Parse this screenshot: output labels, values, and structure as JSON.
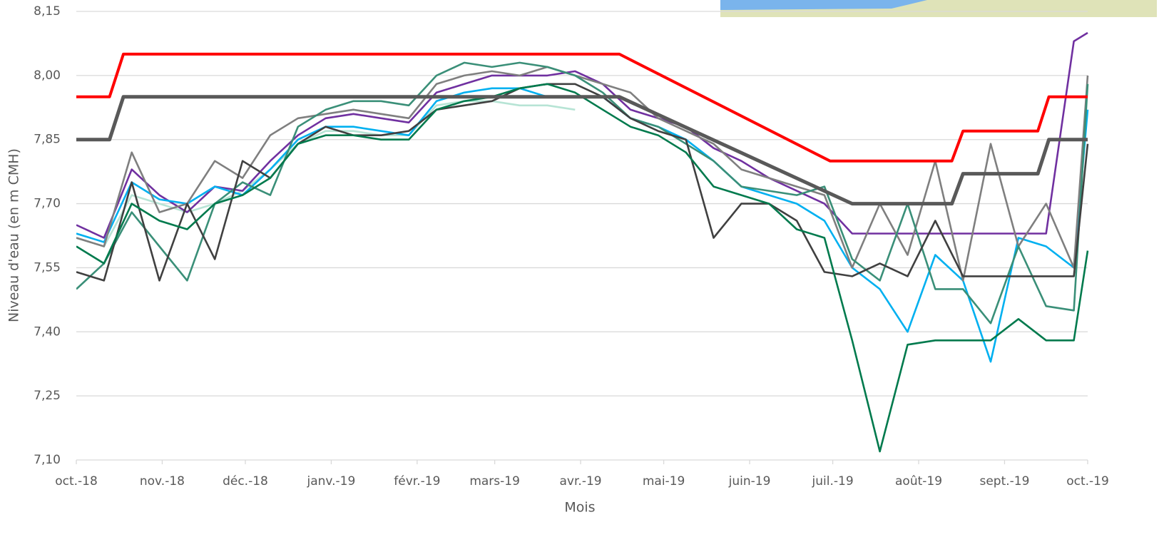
{
  "chart_data": {
    "type": "line",
    "xlabel": "Mois",
    "ylabel": "Niveau d'eau (en m CMH)",
    "xlim": [
      0,
      365
    ],
    "xticks": [
      {
        "value": 0,
        "label": "oct.-18"
      },
      {
        "value": 31,
        "label": "nov.-18"
      },
      {
        "value": 61,
        "label": "déc.-18"
      },
      {
        "value": 92,
        "label": "janv.-19"
      },
      {
        "value": 123,
        "label": "févr.-19"
      },
      {
        "value": 151,
        "label": "mars-19"
      },
      {
        "value": 182,
        "label": "avr.-19"
      },
      {
        "value": 212,
        "label": "mai-19"
      },
      {
        "value": 243,
        "label": "juin-19"
      },
      {
        "value": 273,
        "label": "juil.-19"
      },
      {
        "value": 304,
        "label": "août-19"
      },
      {
        "value": 335,
        "label": "sept.-19"
      },
      {
        "value": 365,
        "label": "oct.-19"
      }
    ],
    "ylim": [
      7.1,
      8.15
    ],
    "yticks": [
      {
        "value": 7.1,
        "label": "7,10"
      },
      {
        "value": 7.25,
        "label": "7,25"
      },
      {
        "value": 7.4,
        "label": "7,40"
      },
      {
        "value": 7.55,
        "label": "7,55"
      },
      {
        "value": 7.7,
        "label": "7,70"
      },
      {
        "value": 7.85,
        "label": "7,85"
      },
      {
        "value": 8.0,
        "label": "8,00"
      },
      {
        "value": 8.15,
        "label": "8,15"
      }
    ],
    "grid": true,
    "x": [
      0,
      10,
      20,
      30,
      40,
      50,
      60,
      70,
      80,
      90,
      100,
      110,
      120,
      130,
      140,
      150,
      160,
      170,
      180,
      190,
      200,
      210,
      220,
      230,
      240,
      250,
      260,
      270,
      280,
      290,
      300,
      310,
      320,
      330,
      340,
      350,
      360,
      365
    ],
    "series": [
      {
        "color": "#b7e4d5",
        "values": [
          7.62,
          7.6,
          7.72,
          7.7,
          7.68,
          7.7,
          7.73,
          7.78,
          7.84,
          7.87,
          7.87,
          7.86,
          7.86,
          7.93,
          7.94,
          7.94,
          7.93,
          7.93,
          7.92,
          null,
          null,
          null,
          null,
          null,
          null,
          null,
          null,
          null,
          null,
          null,
          null,
          null,
          null,
          null,
          null,
          null,
          null,
          null
        ]
      },
      {
        "color": "#7030a0",
        "values": [
          7.65,
          7.62,
          7.78,
          7.72,
          7.68,
          7.74,
          7.73,
          7.8,
          7.86,
          7.9,
          7.91,
          7.9,
          7.89,
          7.96,
          7.98,
          8.0,
          8.0,
          8.0,
          8.01,
          7.98,
          7.92,
          7.9,
          7.88,
          7.83,
          7.8,
          7.76,
          7.73,
          7.7,
          7.63,
          7.63,
          7.63,
          7.63,
          7.63,
          7.63,
          7.63,
          7.63,
          8.08,
          8.1
        ]
      },
      {
        "color": "#00b0f0",
        "values": [
          7.63,
          7.61,
          7.75,
          7.71,
          7.7,
          7.74,
          7.72,
          7.78,
          7.85,
          7.88,
          7.88,
          7.87,
          7.86,
          7.94,
          7.96,
          7.97,
          7.97,
          7.95,
          7.95,
          7.95,
          7.9,
          7.88,
          7.85,
          7.8,
          7.74,
          7.72,
          7.7,
          7.66,
          7.55,
          7.5,
          7.4,
          7.58,
          7.52,
          7.33,
          7.62,
          7.6,
          7.55,
          7.92
        ]
      },
      {
        "color": "#7f7f7f",
        "values": [
          7.62,
          7.6,
          7.82,
          7.68,
          7.7,
          7.8,
          7.76,
          7.86,
          7.9,
          7.91,
          7.92,
          7.91,
          7.9,
          7.98,
          8.0,
          8.01,
          8.0,
          8.02,
          8.0,
          7.98,
          7.96,
          7.9,
          7.87,
          7.84,
          7.78,
          7.76,
          7.74,
          7.72,
          7.55,
          7.7,
          7.58,
          7.8,
          7.52,
          7.84,
          7.6,
          7.7,
          7.55,
          8.0
        ]
      },
      {
        "color": "#3a8f78",
        "values": [
          7.5,
          7.56,
          7.68,
          7.6,
          7.52,
          7.7,
          7.75,
          7.72,
          7.88,
          7.92,
          7.94,
          7.94,
          7.93,
          8.0,
          8.03,
          8.02,
          8.03,
          8.02,
          8.0,
          7.96,
          7.9,
          7.88,
          7.84,
          7.8,
          7.74,
          7.73,
          7.72,
          7.74,
          7.57,
          7.52,
          7.7,
          7.5,
          7.5,
          7.42,
          7.6,
          7.46,
          7.45,
          7.98
        ]
      },
      {
        "color": "#404040",
        "values": [
          7.54,
          7.52,
          7.75,
          7.52,
          7.7,
          7.57,
          7.8,
          7.76,
          7.84,
          7.88,
          7.86,
          7.86,
          7.87,
          7.92,
          7.93,
          7.94,
          7.97,
          7.98,
          7.98,
          7.95,
          7.9,
          7.87,
          7.85,
          7.62,
          7.7,
          7.7,
          7.66,
          7.54,
          7.53,
          7.56,
          7.53,
          7.66,
          7.53,
          7.53,
          7.53,
          7.53,
          7.53,
          7.84
        ]
      },
      {
        "color": "#007a4d",
        "values": [
          7.6,
          7.56,
          7.7,
          7.66,
          7.64,
          7.7,
          7.72,
          7.76,
          7.84,
          7.86,
          7.86,
          7.85,
          7.85,
          7.92,
          7.94,
          7.95,
          7.97,
          7.98,
          7.96,
          7.92,
          7.88,
          7.86,
          7.82,
          7.74,
          7.72,
          7.7,
          7.64,
          7.62,
          7.38,
          7.12,
          7.37,
          7.38,
          7.38,
          7.38,
          7.43,
          7.38,
          7.38,
          7.59
        ]
      },
      {
        "color": "#ff0000",
        "width": 4,
        "x": [
          0,
          12,
          17,
          196,
          272,
          316,
          320,
          347,
          351,
          365
        ],
        "values": [
          7.95,
          7.95,
          8.05,
          8.05,
          7.8,
          7.8,
          7.87,
          7.87,
          7.95,
          7.95
        ]
      },
      {
        "color": "#595959",
        "width": 5,
        "x": [
          0,
          12,
          17,
          196,
          280,
          316,
          320,
          347,
          351,
          365
        ],
        "values": [
          7.85,
          7.85,
          7.95,
          7.95,
          7.7,
          7.7,
          7.77,
          7.77,
          7.85,
          7.85
        ]
      }
    ]
  }
}
